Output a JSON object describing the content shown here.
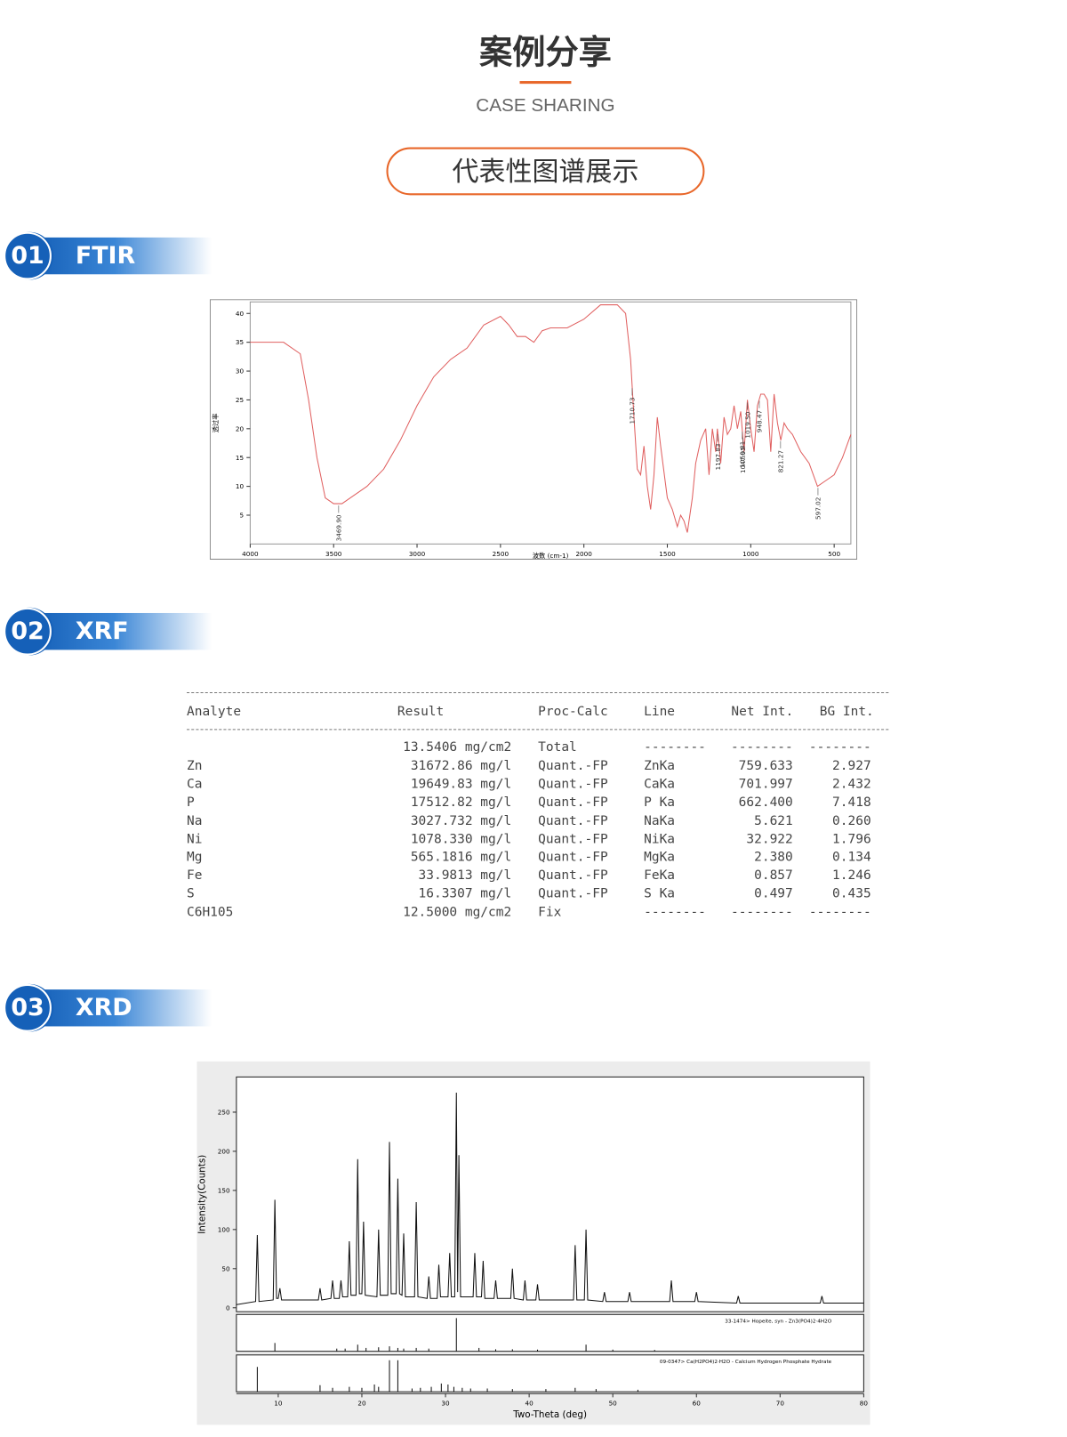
{
  "header": {
    "title": "案例分享",
    "subtitle": "CASE SHARING",
    "badge": "代表性图谱展示"
  },
  "sections": [
    {
      "number": "01",
      "name": "FTIR",
      "chart": {
        "type": "line",
        "x_label": "波数 (cm-1)",
        "y_label": "透过率",
        "color": "#e06060",
        "xlim": [
          4000,
          400
        ],
        "ylim": [
          0,
          42
        ],
        "xticks": [
          4000,
          3500,
          3000,
          2500,
          2000,
          1500,
          1000,
          500
        ],
        "yticks": [
          5,
          10,
          15,
          20,
          25,
          30,
          35,
          40
        ],
        "x": [
          4000,
          3800,
          3700,
          3650,
          3600,
          3550,
          3500,
          3450,
          3400,
          3300,
          3200,
          3100,
          3000,
          2900,
          2800,
          2700,
          2600,
          2500,
          2450,
          2400,
          2350,
          2300,
          2250,
          2200,
          2100,
          2000,
          1900,
          1800,
          1750,
          1720,
          1700,
          1680,
          1660,
          1640,
          1620,
          1600,
          1580,
          1560,
          1540,
          1500,
          1470,
          1440,
          1420,
          1400,
          1380,
          1350,
          1330,
          1300,
          1270,
          1250,
          1230,
          1210,
          1200,
          1180,
          1160,
          1140,
          1120,
          1100,
          1080,
          1060,
          1040,
          1020,
          1000,
          980,
          960,
          940,
          920,
          900,
          880,
          860,
          840,
          820,
          800,
          780,
          750,
          700,
          650,
          600,
          550,
          500,
          450,
          400
        ],
        "values": [
          35,
          35,
          33,
          25,
          15,
          8,
          7,
          7,
          8,
          10,
          13,
          18,
          24,
          29,
          32,
          34,
          38,
          39.5,
          38,
          36,
          36,
          35,
          37,
          37.5,
          37.5,
          39,
          41.5,
          41.5,
          40,
          32,
          22,
          13,
          12,
          17,
          10,
          6,
          12,
          22,
          17,
          8,
          6,
          3,
          5,
          4,
          2,
          8,
          14,
          18,
          20,
          12,
          20,
          16,
          20,
          14,
          22,
          19,
          20,
          24,
          20,
          23,
          16,
          25,
          20,
          16,
          24,
          26,
          26,
          25,
          16,
          26,
          21,
          18,
          21,
          20,
          19,
          16,
          14,
          10,
          11,
          12,
          15,
          19
        ],
        "annotations": [
          {
            "x": 3469.9,
            "label": "3469.90"
          },
          {
            "x": 1710.73,
            "label": "1710.73"
          },
          {
            "x": 1197.83,
            "label": "1197.83"
          },
          {
            "x": 1050.81,
            "label": "1050.81"
          },
          {
            "x": 1047.95,
            "label": "1047.95"
          },
          {
            "x": 1019.5,
            "label": "1019.50"
          },
          {
            "x": 948.47,
            "label": "948.47"
          },
          {
            "x": 821.27,
            "label": "821.27"
          },
          {
            "x": 597.02,
            "label": "597.02"
          }
        ]
      }
    },
    {
      "number": "02",
      "name": "XRF",
      "table": {
        "columns": [
          "Analyte",
          "Result",
          "Proc-Calc",
          "Line",
          "Net Int.",
          "BG Int."
        ],
        "rows": [
          [
            null,
            "13.5406 mg/cm2",
            "Total",
            "--------",
            "--------",
            "--------"
          ],
          [
            "Zn",
            "31672.86 mg/l",
            "Quant.-FP",
            "ZnKa",
            "759.633",
            "2.927"
          ],
          [
            "Ca",
            "19649.83 mg/l",
            "Quant.-FP",
            "CaKa",
            "701.997",
            "2.432"
          ],
          [
            "P",
            "17512.82 mg/l",
            "Quant.-FP",
            "P Ka",
            "662.400",
            "7.418"
          ],
          [
            "Na",
            "3027.732 mg/l",
            "Quant.-FP",
            "NaKa",
            "5.621",
            "0.260"
          ],
          [
            "Ni",
            "1078.330 mg/l",
            "Quant.-FP",
            "NiKa",
            "32.922",
            "1.796"
          ],
          [
            "Mg",
            "565.1816 mg/l",
            "Quant.-FP",
            "MgKa",
            "2.380",
            "0.134"
          ],
          [
            "Fe",
            "33.9813 mg/l",
            "Quant.-FP",
            "FeKa",
            "0.857",
            "1.246"
          ],
          [
            "S",
            "16.3307 mg/l",
            "Quant.-FP",
            "S Ka",
            "0.497",
            "0.435"
          ],
          [
            "C6H105",
            "12.5000 mg/cm2",
            "Fix",
            "--------",
            "--------",
            "--------"
          ]
        ]
      }
    },
    {
      "number": "03",
      "name": "XRD",
      "chart": {
        "type": "line",
        "x_label": "Two-Theta (deg)",
        "y_label": "Intensity(Counts)",
        "color": "#111111",
        "xlim": [
          5,
          80
        ],
        "ylim": [
          -5,
          295
        ],
        "xticks": [
          10,
          20,
          30,
          40,
          50,
          60,
          70,
          80
        ],
        "yticks": [
          0,
          50,
          100,
          150,
          200,
          250
        ],
        "x": [
          5,
          7.3,
          7.5,
          7.7,
          9.4,
          9.6,
          9.8,
          10.0,
          10.2,
          10.4,
          14.8,
          15,
          15.2,
          16.3,
          16.5,
          16.7,
          17.3,
          17.5,
          17.7,
          18.3,
          18.5,
          18.7,
          19.3,
          19.5,
          19.7,
          20.0,
          20.2,
          20.4,
          21.8,
          22,
          22.2,
          23.1,
          23.3,
          23.5,
          24.1,
          24.3,
          24.5,
          24.8,
          25,
          25.2,
          26.3,
          26.5,
          26.7,
          27.8,
          28,
          28.2,
          29.0,
          29.2,
          29.4,
          30.3,
          30.5,
          30.7,
          31.1,
          31.3,
          31.45,
          31.6,
          31.8,
          33.3,
          33.5,
          33.7,
          34.3,
          34.5,
          34.7,
          35.8,
          36,
          36.2,
          37.8,
          38,
          38.2,
          39.3,
          39.5,
          39.7,
          40.8,
          41,
          41.2,
          45.3,
          45.5,
          45.7,
          46.6,
          46.8,
          47.0,
          48.8,
          49,
          49.2,
          51.8,
          52,
          52.2,
          56.8,
          57,
          57.2,
          59.8,
          60,
          60.2,
          64.8,
          65,
          65.2,
          74.8,
          75,
          75.2,
          80
        ],
        "values": [
          4,
          8,
          93,
          8,
          10,
          138,
          12,
          12,
          25,
          10,
          10,
          25,
          10,
          12,
          35,
          12,
          12,
          35,
          14,
          14,
          85,
          16,
          16,
          190,
          18,
          18,
          110,
          16,
          14,
          100,
          16,
          16,
          212,
          18,
          18,
          165,
          18,
          16,
          95,
          14,
          14,
          135,
          14,
          12,
          40,
          12,
          12,
          55,
          14,
          14,
          70,
          14,
          14,
          275,
          20,
          195,
          14,
          14,
          70,
          14,
          14,
          60,
          12,
          12,
          35,
          12,
          12,
          50,
          12,
          10,
          35,
          10,
          10,
          30,
          10,
          10,
          80,
          10,
          10,
          100,
          10,
          8,
          20,
          8,
          8,
          20,
          8,
          8,
          35,
          8,
          8,
          20,
          8,
          6,
          15,
          6,
          6,
          15,
          6,
          6
        ],
        "references": [
          {
            "name": "33-1474> Hopeite, syn - Zn3(PO4)2·4H2O",
            "x": [
              9.6,
              17,
              18,
              19.5,
              20.5,
              22,
              23.3,
              24.3,
              25,
              26.5,
              28,
              31.3,
              34,
              36,
              38,
              41,
              46.8,
              50,
              55
            ],
            "values": [
              25,
              8,
              8,
              20,
              10,
              12,
              15,
              10,
              8,
              10,
              8,
              100,
              10,
              6,
              6,
              5,
              20,
              5,
              4
            ]
          },
          {
            "name": "09-0347> Ca(H2PO4)2·H2O - Calcium Hydrogen Phosphate Hydrate",
            "x": [
              7.5,
              15,
              16.5,
              18.5,
              20,
              21.5,
              22,
              23.3,
              24.3,
              26,
              27,
              28.3,
              29.5,
              30.3,
              31,
              32,
              33,
              35,
              38,
              42,
              45.5,
              48,
              53
            ],
            "values": [
              75,
              20,
              12,
              15,
              12,
              22,
              15,
              95,
              95,
              10,
              12,
              15,
              25,
              22,
              15,
              12,
              10,
              10,
              8,
              8,
              12,
              8,
              6
            ]
          }
        ]
      }
    }
  ]
}
